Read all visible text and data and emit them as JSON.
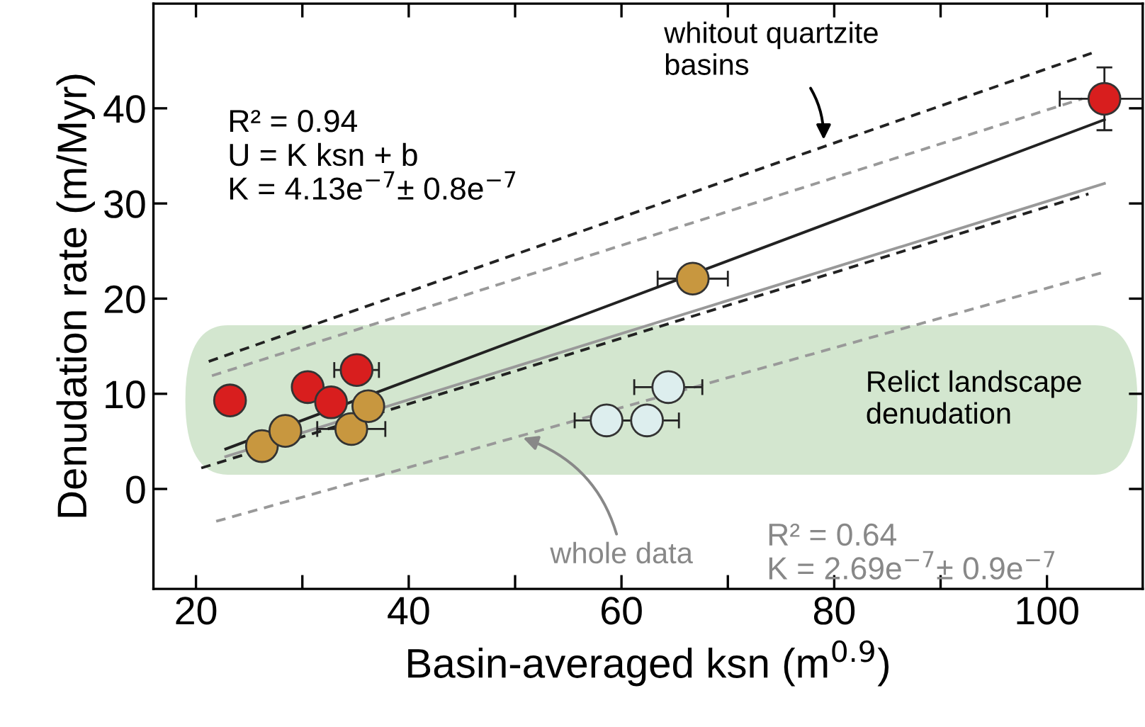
{
  "chart_data": {
    "type": "scatter",
    "xlabel": "Basin-averaged ksn (m$^{0.9}$)",
    "ylabel": "Denudation rate (m/Myr)",
    "xlim": [
      16,
      109
    ],
    "ylim": [
      -10.5,
      51
    ],
    "xticks": [
      20,
      {
        "value": 30,
        "label": null
      },
      40,
      {
        "value": 50,
        "label": null
      },
      60,
      {
        "value": 70,
        "label": null
      },
      80,
      {
        "value": 90,
        "label": null
      },
      100
    ],
    "yticks": [
      0,
      10,
      20,
      30,
      40
    ],
    "grid": false,
    "marker": "circle",
    "bands": [
      {
        "axis": "y",
        "from": 1.5,
        "to": 17.2,
        "label": "Relict landscape denudation",
        "color": "#d3e6cf"
      }
    ],
    "series": [
      {
        "type": "line",
        "marker": "none",
        "color": "#222222",
        "line_style": "solid",
        "x": [
          22.8,
          105.4
        ],
        "values": [
          4.2,
          38.8
        ]
      },
      {
        "type": "line",
        "marker": "none",
        "color": "#999999",
        "line_style": "solid",
        "x": [
          22.8,
          105.4
        ],
        "values": [
          3.4,
          32.1
        ]
      },
      {
        "type": "line",
        "marker": "none",
        "color": "#222222",
        "line_style": "dashed",
        "x": [
          21.2,
          104.2
        ],
        "values": [
          13.4,
          45.8
        ]
      },
      {
        "type": "line",
        "marker": "none",
        "color": "#222222",
        "line_style": "dashed",
        "x": [
          20.5,
          103.9
        ],
        "values": [
          2.2,
          31.0
        ]
      },
      {
        "type": "line",
        "marker": "none",
        "color": "#999999",
        "line_style": "dashed",
        "x": [
          21.5,
          103.3
        ],
        "values": [
          11.9,
          41.0
        ]
      },
      {
        "type": "line",
        "marker": "none",
        "color": "#999999",
        "line_style": "dashed",
        "x": [
          21.9,
          105.1
        ],
        "values": [
          -3.4,
          22.7
        ]
      },
      {
        "color": "#d81e1e",
        "x": [
          23.2,
          30.5,
          32.7,
          35.1,
          105.4
        ],
        "values": [
          9.3,
          10.7,
          9.1,
          12.5,
          41.0
        ],
        "xerrors": [
          null,
          null,
          null,
          2.1,
          4.2
        ],
        "errors": [
          null,
          null,
          null,
          null,
          3.3
        ]
      },
      {
        "color": "#c8973f",
        "x": [
          26.2,
          28.4,
          34.6,
          36.2,
          66.7
        ],
        "values": [
          4.5,
          6.1,
          6.3,
          8.7,
          22.1
        ],
        "xerrors": [
          null,
          null,
          3.2,
          null,
          3.3
        ]
      },
      {
        "color": "#ddeeee",
        "x": [
          58.6,
          62.4,
          64.4
        ],
        "values": [
          7.2,
          7.2,
          10.7
        ],
        "xerrors": [
          3.0,
          3.0,
          3.2
        ]
      }
    ],
    "annotations": [
      {
        "text": "whitout quartzite\nbasins",
        "x": 79,
        "y": 36.3
      },
      {
        "text": "whole data",
        "x": 50.4,
        "y": 5.5
      },
      "R² = 0.94\nU = K ksn + b\nK = 4.13e$^{−7}$± 0.8e$^{−7}$",
      "R² = 0.64\nK = 2.69e$^{−7}$± 0.9e$^{−7}$"
    ]
  }
}
